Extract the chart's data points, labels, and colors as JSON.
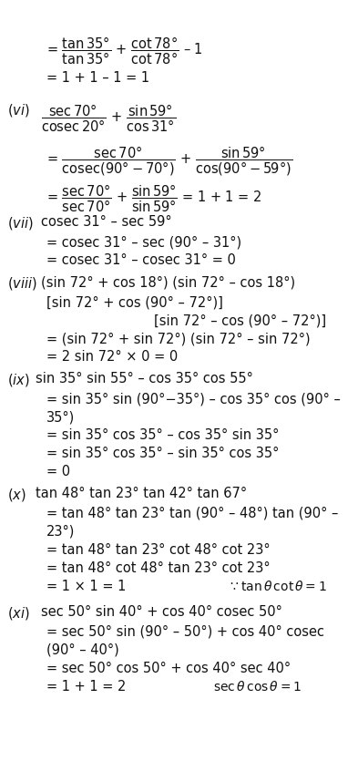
{
  "bg_color": "#ffffff",
  "figsize": [
    3.93,
    8.46
  ],
  "dpi": 100,
  "fontsize": 10.5,
  "lines": [
    [
      0.13,
      38,
      "= $\\dfrac{\\tan 35°}{\\tan 35°}$ + $\\dfrac{\\cot 78°}{\\cot 78°}$ – 1",
      "normal"
    ],
    [
      0.13,
      78,
      "= 1 + 1 – 1 = 1",
      "normal"
    ],
    [
      0.02,
      112,
      "$(vi)$",
      "italic"
    ],
    [
      0.115,
      112,
      "$\\dfrac{\\sec 70°}{\\mathrm{cosec}\\,20°}$ + $\\dfrac{\\sin 59°}{\\cos 31°}$",
      "normal"
    ],
    [
      0.13,
      158,
      "= $\\dfrac{\\sec 70°}{\\mathrm{cosec}(90°−70°)}$ + $\\dfrac{\\sin 59°}{\\cos(90°−59°)}$",
      "normal"
    ],
    [
      0.13,
      200,
      "= $\\dfrac{\\sec 70°}{\\sec 70°}$ + $\\dfrac{\\sin 59°}{\\sin 59°}$ = 1 + 1 = 2",
      "normal"
    ],
    [
      0.02,
      236,
      "$(vii)$",
      "italic"
    ],
    [
      0.115,
      236,
      "cosec 31° – sec 59°",
      "normal"
    ],
    [
      0.13,
      258,
      "= cosec 31° – sec (90° – 31°)",
      "normal"
    ],
    [
      0.13,
      278,
      "= cosec 31° – cosec 31° = 0",
      "normal"
    ],
    [
      0.02,
      302,
      "$(viii)$",
      "italic"
    ],
    [
      0.115,
      302,
      "(sin 72° + cos 18°) (sin 72° – cos 18°)",
      "normal"
    ],
    [
      0.13,
      324,
      "[sin 72° + cos (90° – 72°)]",
      "normal"
    ],
    [
      0.43,
      344,
      "[sin 72° – cos (90° – 72°)]",
      "normal"
    ],
    [
      0.13,
      364,
      "= (sin 72° + sin 72°) (sin 72° – sin 72°)",
      "normal"
    ],
    [
      0.13,
      384,
      "= 2 sin 72° × 0 = 0",
      "normal"
    ],
    [
      0.02,
      408,
      "$(ix)$",
      "italic"
    ],
    [
      0.1,
      408,
      "sin 35° sin 55° – cos 35° cos 55°",
      "normal"
    ],
    [
      0.13,
      430,
      "= sin 35° sin (90°−35°) – cos 35° cos (90° –",
      "normal"
    ],
    [
      0.13,
      450,
      "35°)",
      "normal"
    ],
    [
      0.13,
      470,
      "= sin 35° cos 35° – cos 35° sin 35°",
      "normal"
    ],
    [
      0.13,
      490,
      "= sin 35° cos 35° – sin 35° cos 35°",
      "normal"
    ],
    [
      0.13,
      510,
      "= 0",
      "normal"
    ],
    [
      0.02,
      534,
      "$(x)$",
      "italic"
    ],
    [
      0.1,
      534,
      "tan 48° tan 23° tan 42° tan 67°",
      "normal"
    ],
    [
      0.13,
      556,
      "= tan 48° tan 23° tan (90° – 48°) tan (90° –",
      "normal"
    ],
    [
      0.13,
      576,
      "23°)",
      "normal"
    ],
    [
      0.13,
      596,
      "= tan 48° tan 23° cot 48° cot 23°",
      "normal"
    ],
    [
      0.13,
      616,
      "= tan 48° cot 48° tan 23° cot 23°",
      "normal"
    ],
    [
      0.13,
      636,
      "= 1 × 1 = 1",
      "normal"
    ],
    [
      0.02,
      664,
      "$(xi)$",
      "italic"
    ],
    [
      0.115,
      664,
      "sec 50° sin 40° + cos 40° cosec 50°",
      "normal"
    ],
    [
      0.13,
      686,
      "= sec 50° sin (90° – 50°) + cos 40° cosec",
      "normal"
    ],
    [
      0.13,
      706,
      "(90° – 40°)",
      "normal"
    ],
    [
      0.13,
      726,
      "= sec 50° cos 50° + cos 40° sec 40°",
      "normal"
    ],
    [
      0.13,
      746,
      "= 1 + 1 = 2",
      "normal"
    ]
  ],
  "right_notes": [
    [
      0.636,
      636,
      "{\\because \\tan\\theta\\, \\cot\\theta = 1}"
    ],
    [
      0.595,
      746,
      "{\\sec\\theta\\, \\cos\\theta = 1}"
    ]
  ]
}
